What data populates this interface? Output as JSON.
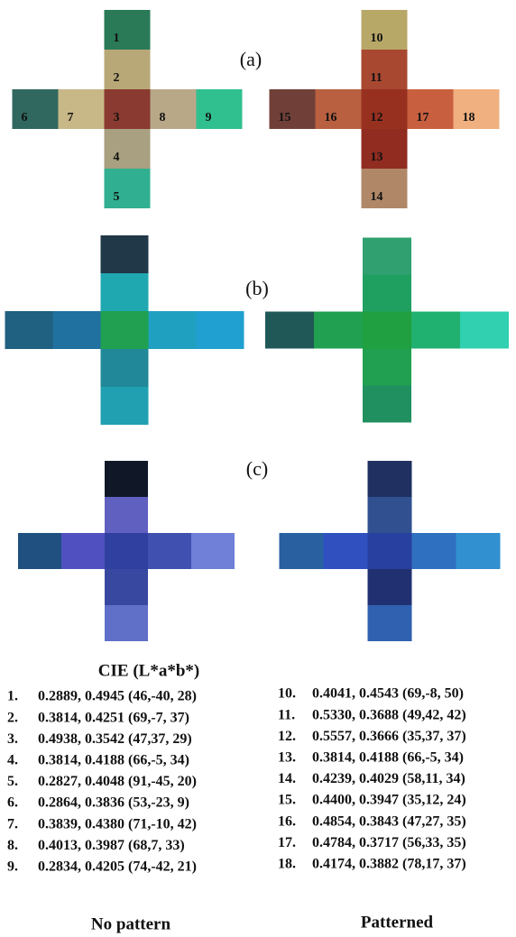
{
  "panels": [
    {
      "label": "(a)",
      "tiles": [
        [
          "1",
          "2",
          "3",
          "4",
          "5",
          "6",
          "7",
          "8",
          "9"
        ],
        [
          "10",
          "11",
          "12",
          "13",
          "14",
          "15",
          "16",
          "17",
          "18"
        ]
      ]
    },
    {
      "label": "(b)"
    },
    {
      "label": "(c)"
    }
  ],
  "table": {
    "title": "CIE (L*a*b*)",
    "left": [
      {
        "num": "1.",
        "text": "0.2889, 0.4945 (46,-40, 28)"
      },
      {
        "num": "2.",
        "text": "0.3814, 0.4251 (69,-7, 37)"
      },
      {
        "num": "3.",
        "text": "0.4938, 0.3542 (47,37, 29)"
      },
      {
        "num": "4.",
        "text": "0.3814, 0.4188 (66,-5, 34)"
      },
      {
        "num": "5.",
        "text": "0.2827, 0.4048 (91,-45, 20)"
      },
      {
        "num": "6.",
        "text": "0.2864, 0.3836 (53,-23, 9)"
      },
      {
        "num": "7.",
        "text": "0.3839, 0.4380 (71,-10, 42)"
      },
      {
        "num": "8.",
        "text": "0.4013, 0.3987 (68,7, 33)"
      },
      {
        "num": "9.",
        "text": "0.2834, 0.4205 (74,-42, 21)"
      }
    ],
    "right": [
      {
        "num": "10.",
        "text": "0.4041, 0.4543 (69,-8, 50)"
      },
      {
        "num": "11.",
        "text": "0.5330, 0.3688 (49,42, 42)"
      },
      {
        "num": "12.",
        "text": "0.5557, 0.3666 (35,37, 37)"
      },
      {
        "num": "13.",
        "text": "0.3814, 0.4188 (66,-5, 34)"
      },
      {
        "num": "14.",
        "text": "0.4239, 0.4029 (58,11, 34)"
      },
      {
        "num": "15.",
        "text": "0.4400, 0.3947 (35,12, 24)"
      },
      {
        "num": "16.",
        "text": "0.4854, 0.3843 (47,27, 35)"
      },
      {
        "num": "17.",
        "text": "0.4784, 0.3717 (56,33, 35)"
      },
      {
        "num": "18.",
        "text": "0.4174, 0.3882 (78,17, 37)"
      }
    ]
  },
  "columns": [
    "No pattern",
    "Patterned"
  ]
}
